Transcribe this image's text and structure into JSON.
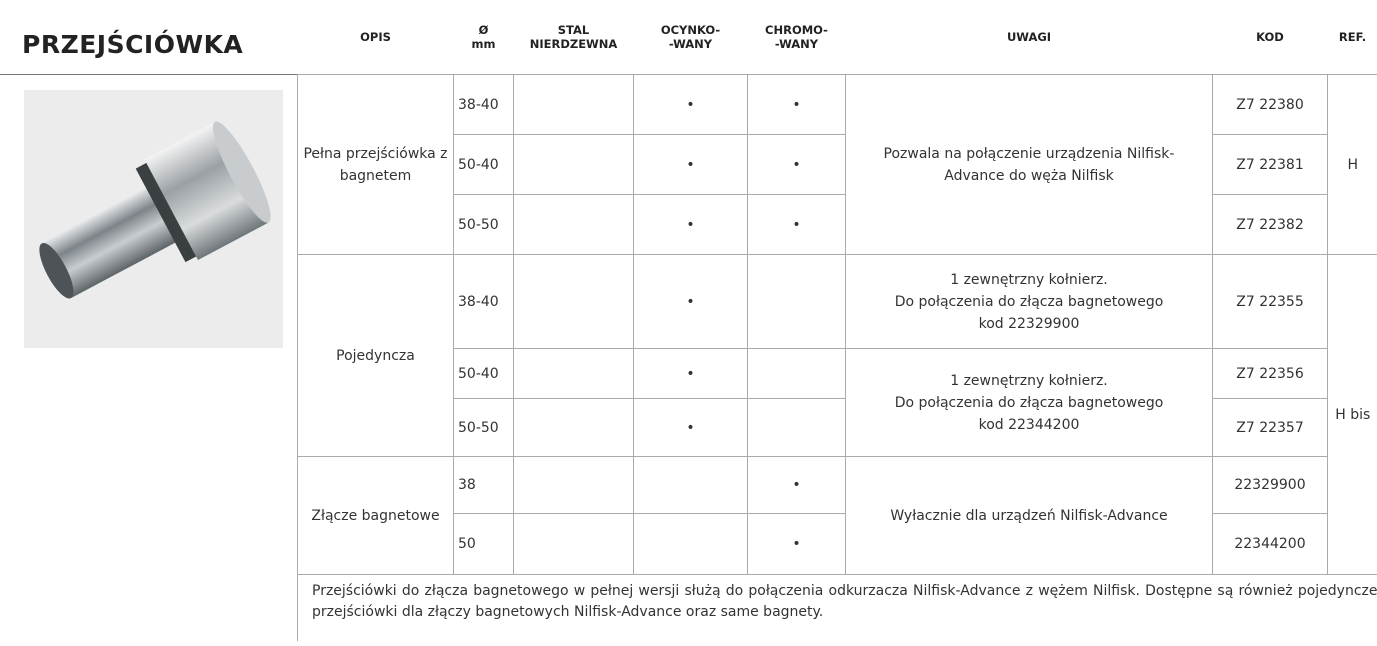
{
  "title": "PRZEJŚCIÓWKA",
  "table": {
    "headers": [
      [
        "OPIS"
      ],
      [
        "Ø",
        "mm"
      ],
      [
        "STAL",
        "NIERDZEWNA"
      ],
      [
        "OCYNKO-",
        "-WANY"
      ],
      [
        "CHROMO-",
        "-WANY"
      ],
      [
        "UWAGI"
      ],
      [
        "KOD"
      ],
      [
        "REF."
      ]
    ],
    "rows": [
      {
        "opis": "Pełna przejściówka z bagnetem",
        "mm": "38-40",
        "ocynk": "•",
        "chrom": "•",
        "uwagi": [
          "Pozwala na połączenie urządzenia Nilfisk-Advance do węża Nilfisk"
        ],
        "kod": "Z7 22380",
        "ref": "H"
      },
      {
        "mm": "50-40",
        "ocynk": "•",
        "chrom": "•",
        "kod": "Z7 22381"
      },
      {
        "mm": "50-50",
        "ocynk": "•",
        "chrom": "•",
        "kod": "Z7 22382"
      },
      {
        "opis": "Pojedyncza",
        "mm": "38-40",
        "ocynk": "•",
        "uwagi": [
          "1 zewnętrzny kołnierz.",
          "Do połączenia do złącza bagnetowego",
          "kod 22329900"
        ],
        "kod": "Z7 22355",
        "ref": "H bis"
      },
      {
        "mm": "50-40",
        "ocynk": "•",
        "uwagi": [
          "1 zewnętrzny kołnierz.",
          "Do połączenia do złącza bagnetowego",
          "kod 22344200"
        ],
        "kod": "Z7 22356"
      },
      {
        "mm": "50-50",
        "ocynk": "•",
        "kod": "Z7 22357"
      },
      {
        "opis": "Złącze bagnetowe",
        "mm": "38",
        "chrom": "•",
        "uwagi": [
          "Wyłacznie dla urządzeń Nilfisk-Advance"
        ],
        "kod": "22329900"
      },
      {
        "mm": "50",
        "chrom": "•",
        "kod": "22344200"
      }
    ],
    "note": "Przejściówki do złącza bagnetowego w pełnej wersji służą do połączenia odkurzacza Nilfisk-Advance z wężem Nilfisk. Dostępne są również pojedyncze przejściówki dla złączy bagnetowych Nilfisk-Advance oraz same bagnety."
  }
}
